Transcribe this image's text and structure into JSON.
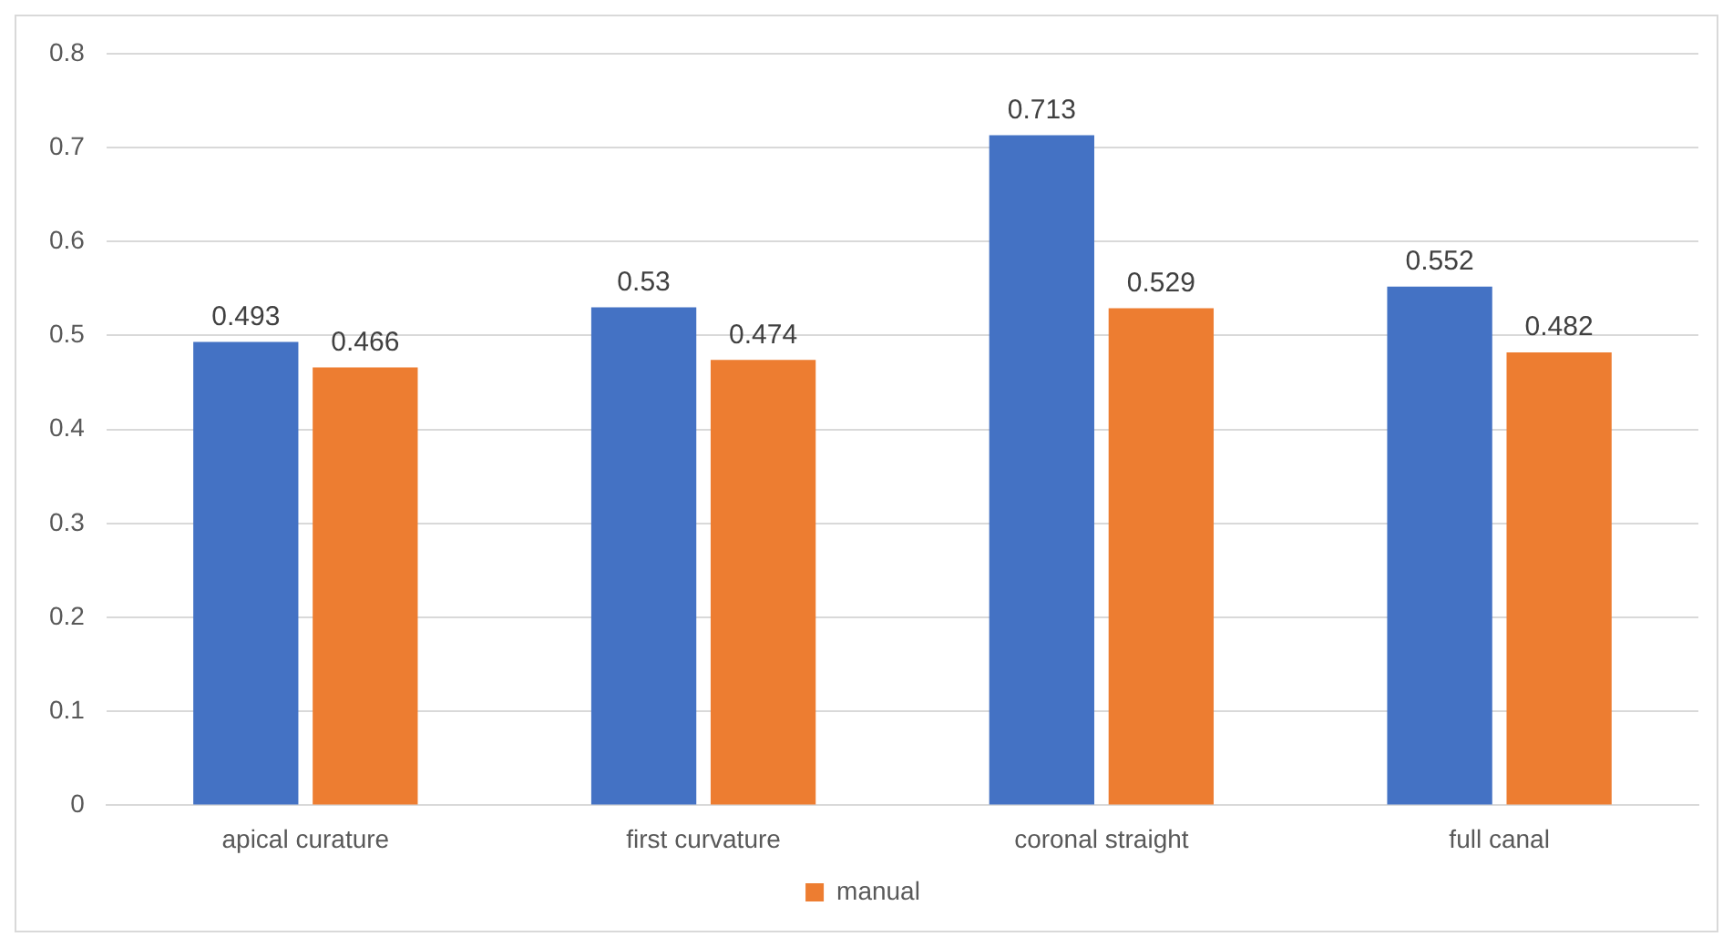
{
  "chart_data": {
    "type": "bar",
    "categories": [
      "apical curature",
      "first curvature",
      "coronal straight",
      "full canal"
    ],
    "series": [
      {
        "color": "#4472c4",
        "values": [
          0.493,
          0.53,
          0.713,
          0.552
        ]
      },
      {
        "name": "manual",
        "color": "#ed7d31",
        "values": [
          0.466,
          0.474,
          0.529,
          0.482
        ]
      }
    ],
    "ylim": [
      0,
      0.8
    ],
    "yticks": [
      0,
      0.1,
      0.2,
      0.3,
      0.4,
      0.5,
      0.6,
      0.7,
      0.8
    ],
    "grid": "y",
    "legend": "bottom",
    "data_labels": true
  }
}
